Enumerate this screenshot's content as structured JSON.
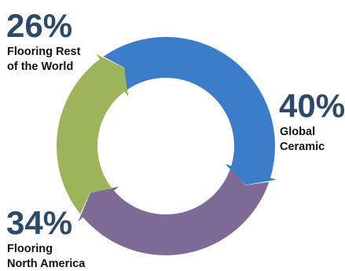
{
  "chart_data": {
    "type": "pie",
    "variant": "donut-arrows",
    "title": "",
    "segments": [
      {
        "label": "Global Ceramic",
        "value": 40,
        "value_label": "40%",
        "label_lines": [
          "Global",
          "Ceramic"
        ],
        "color": "#3c7dc9"
      },
      {
        "label": "Flooring North America",
        "value": 34,
        "value_label": "34%",
        "label_lines": [
          "Flooring",
          "North America"
        ],
        "color": "#7e6a96"
      },
      {
        "label": "Flooring Rest of the World",
        "value": 26,
        "value_label": "26%",
        "label_lines": [
          "Flooring Rest",
          "of the World"
        ],
        "color": "#9db45a"
      }
    ]
  }
}
